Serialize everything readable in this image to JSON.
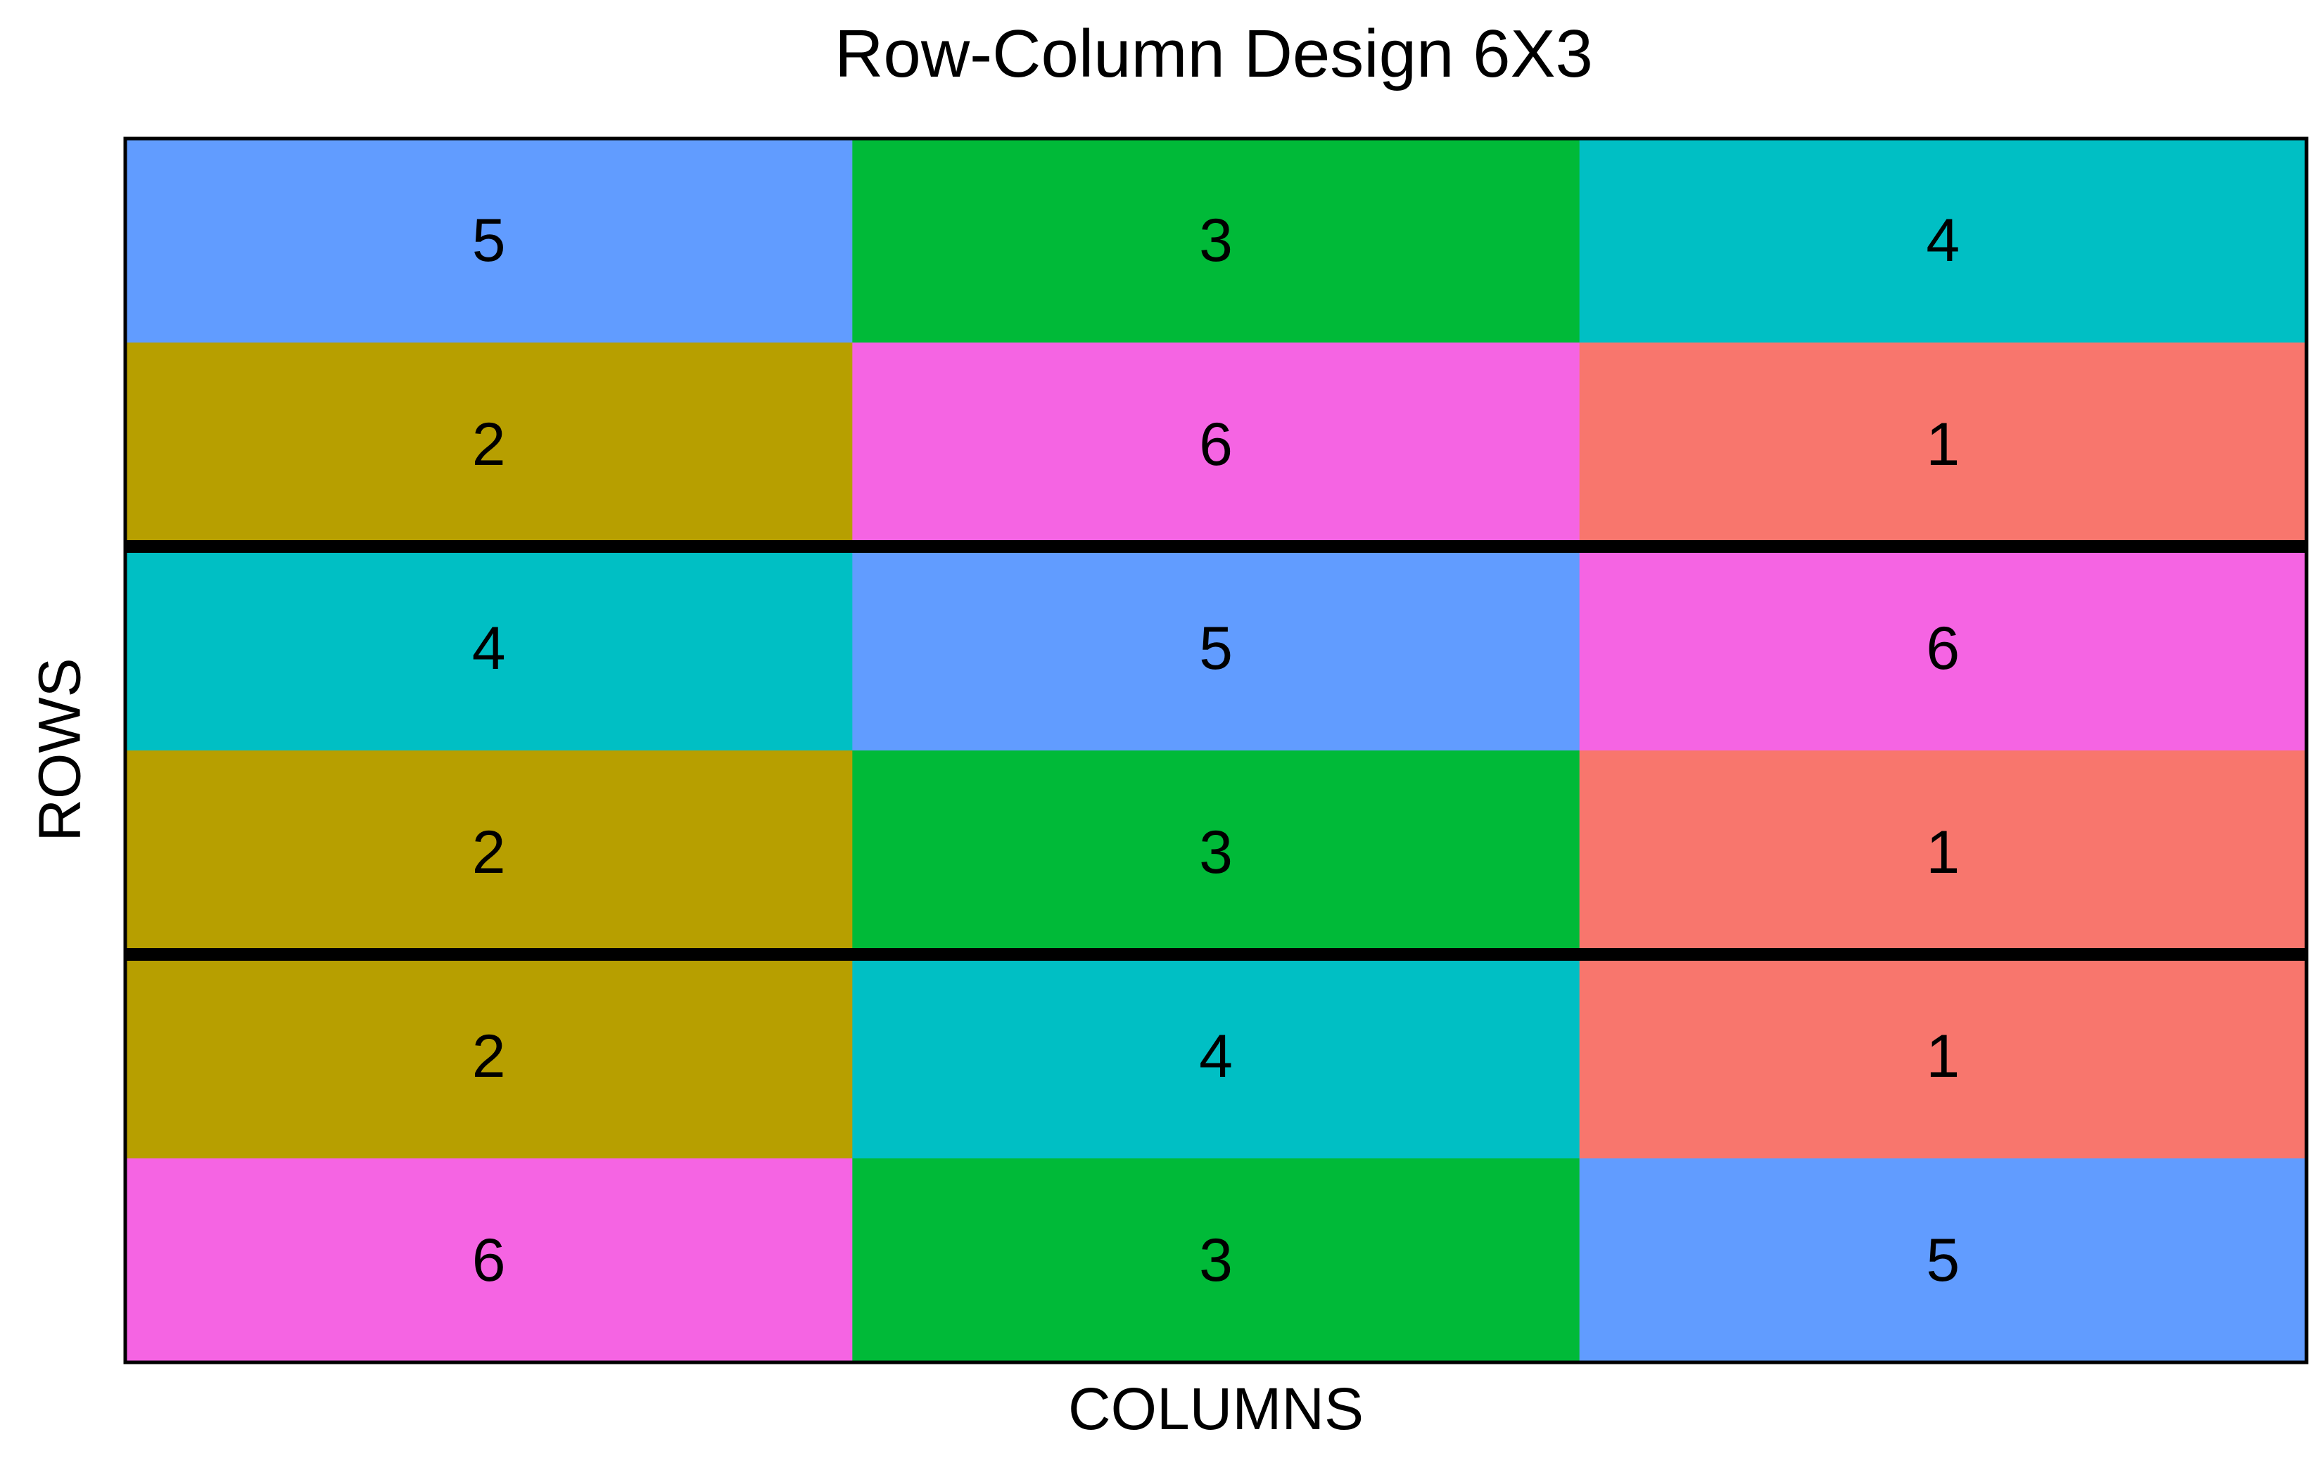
{
  "chart_data": {
    "type": "heatmap",
    "title": "Row-Column Design 6X3",
    "xlabel": "COLUMNS",
    "ylabel": "ROWS",
    "n_rows": 6,
    "n_cols": 3,
    "cells": [
      [
        "5",
        "3",
        "4"
      ],
      [
        "2",
        "6",
        "1"
      ],
      [
        "4",
        "5",
        "6"
      ],
      [
        "2",
        "3",
        "1"
      ],
      [
        "2",
        "4",
        "1"
      ],
      [
        "6",
        "3",
        "5"
      ]
    ],
    "block_boundaries_after_rows": [
      2,
      4
    ],
    "treatment_colors": {
      "1": "#F8766D",
      "2": "#B79F00",
      "3": "#00BA38",
      "4": "#00BFC4",
      "5": "#619CFF",
      "6": "#F564E3"
    },
    "legend": "none",
    "grid": false
  }
}
